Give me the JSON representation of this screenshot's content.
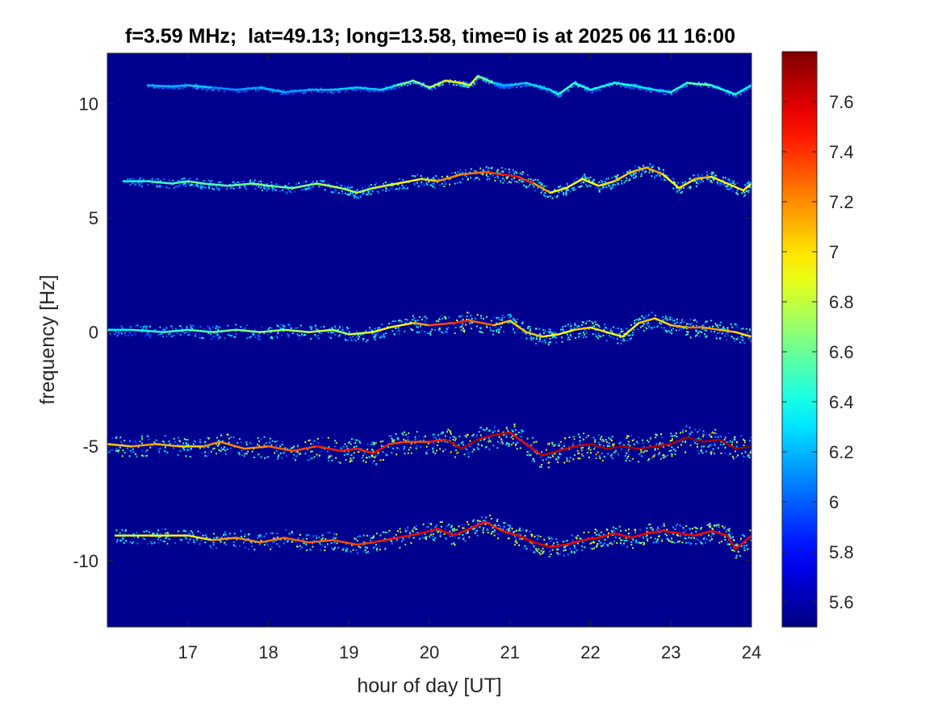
{
  "chart_data": {
    "type": "heatmap",
    "title": "f=3.59 MHz;  lat=49.13; long=13.58, time=0 is at 2025 06 11 16:00",
    "xlabel": "hour of day [UT]",
    "ylabel": "frequency [Hz]",
    "xlim": [
      16.0,
      24.0
    ],
    "ylim": [
      -12.9,
      12.2
    ],
    "xticks": [
      17,
      18,
      19,
      20,
      21,
      22,
      23,
      24
    ],
    "xtick_labels": [
      "17",
      "18",
      "19",
      "20",
      "21",
      "22",
      "23",
      "24"
    ],
    "yticks": [
      10,
      5,
      0,
      -5,
      -10
    ],
    "ytick_labels": [
      "10",
      "5",
      "0",
      "-5",
      "-10"
    ],
    "colorbar": {
      "range": [
        5.5,
        7.8
      ],
      "ticks": [
        5.6,
        5.8,
        6,
        6.2,
        6.4,
        6.6,
        6.8,
        7,
        7.2,
        7.4,
        7.6
      ],
      "tick_labels": [
        "5.6",
        "5.8",
        "6",
        "6.2",
        "6.4",
        "6.6",
        "6.8",
        "7",
        "7.2",
        "7.4",
        "7.6"
      ],
      "colormap": "jet"
    },
    "background_color": "#00008f",
    "grid": false,
    "traces": [
      {
        "hours": [
          16.5,
          16.8,
          17.0,
          17.3,
          17.6,
          17.9,
          18.2,
          18.5,
          18.8,
          19.1,
          19.4,
          19.6,
          19.8,
          20.0,
          20.2,
          20.4,
          20.5,
          20.6,
          20.8,
          20.9,
          21.0,
          21.2,
          21.5,
          21.6,
          21.8,
          22.0,
          22.3,
          22.5,
          22.8,
          23.0,
          23.2,
          23.5,
          23.8,
          24.0
        ],
        "freq": [
          10.8,
          10.75,
          10.8,
          10.7,
          10.6,
          10.7,
          10.5,
          10.6,
          10.6,
          10.7,
          10.6,
          10.8,
          11.0,
          10.7,
          11.0,
          10.9,
          10.8,
          11.2,
          10.9,
          10.8,
          10.8,
          10.9,
          10.6,
          10.4,
          10.9,
          10.6,
          10.9,
          10.8,
          10.6,
          10.5,
          10.9,
          10.8,
          10.4,
          10.8
        ],
        "intensity": [
          6.3,
          6.1,
          6.3,
          6.2,
          6.0,
          6.3,
          6.1,
          6.2,
          6.2,
          6.3,
          6.2,
          6.4,
          6.8,
          6.5,
          7.1,
          6.9,
          6.8,
          6.9,
          6.3,
          6.2,
          6.2,
          6.3,
          6.3,
          6.4,
          6.6,
          6.3,
          6.5,
          6.4,
          6.3,
          6.3,
          6.6,
          6.6,
          6.3,
          6.4
        ],
        "spread": 0.08
      },
      {
        "hours": [
          16.2,
          16.5,
          16.8,
          17.0,
          17.2,
          17.5,
          17.8,
          18.0,
          18.3,
          18.6,
          18.9,
          19.1,
          19.3,
          19.6,
          19.9,
          20.1,
          20.4,
          20.7,
          20.9,
          21.1,
          21.3,
          21.5,
          21.7,
          21.9,
          22.1,
          22.3,
          22.5,
          22.7,
          22.9,
          23.1,
          23.3,
          23.5,
          23.7,
          23.9,
          24.0
        ],
        "freq": [
          6.6,
          6.6,
          6.5,
          6.6,
          6.5,
          6.4,
          6.5,
          6.4,
          6.3,
          6.5,
          6.3,
          6.1,
          6.3,
          6.5,
          6.7,
          6.6,
          6.9,
          7.0,
          6.9,
          6.8,
          6.5,
          6.1,
          6.3,
          6.7,
          6.4,
          6.6,
          7.0,
          7.2,
          6.9,
          6.3,
          6.7,
          6.8,
          6.5,
          6.2,
          6.5
        ],
        "intensity": [
          6.3,
          6.5,
          6.5,
          6.6,
          6.6,
          6.5,
          6.7,
          6.6,
          6.6,
          6.7,
          6.8,
          6.7,
          6.8,
          6.9,
          7.0,
          7.1,
          7.3,
          7.2,
          7.5,
          7.5,
          7.3,
          7.0,
          6.9,
          7.0,
          6.9,
          7.1,
          7.0,
          7.2,
          7.1,
          6.8,
          7.2,
          7.0,
          6.9,
          7.0,
          6.9
        ],
        "spread": 0.22
      },
      {
        "hours": [
          16.0,
          16.3,
          16.7,
          17.0,
          17.3,
          17.6,
          17.9,
          18.2,
          18.5,
          18.8,
          19.0,
          19.3,
          19.5,
          19.8,
          20.0,
          20.3,
          20.5,
          20.8,
          21.0,
          21.2,
          21.4,
          21.6,
          21.8,
          22.0,
          22.2,
          22.4,
          22.6,
          22.8,
          23.0,
          23.2,
          23.4,
          23.6,
          23.8,
          24.0
        ],
        "freq": [
          0.1,
          0.1,
          0.0,
          0.1,
          0.0,
          0.1,
          0.0,
          0.1,
          0.0,
          0.1,
          -0.1,
          0.0,
          0.2,
          0.4,
          0.3,
          0.4,
          0.5,
          0.3,
          0.5,
          0.0,
          -0.2,
          -0.1,
          0.1,
          0.2,
          0.0,
          -0.2,
          0.4,
          0.6,
          0.3,
          0.2,
          0.2,
          0.1,
          0.0,
          -0.2
        ],
        "intensity": [
          6.3,
          6.4,
          6.5,
          6.5,
          6.6,
          6.6,
          6.7,
          6.7,
          6.8,
          6.8,
          6.7,
          7.0,
          6.8,
          7.1,
          7.2,
          7.5,
          7.4,
          7.2,
          7.0,
          7.1,
          7.0,
          6.9,
          7.0,
          7.1,
          6.9,
          6.9,
          7.0,
          7.1,
          6.9,
          7.3,
          7.2,
          7.1,
          7.1,
          6.9
        ],
        "spread": 0.3
      },
      {
        "hours": [
          16.0,
          16.3,
          16.6,
          16.9,
          17.2,
          17.4,
          17.7,
          18.0,
          18.3,
          18.6,
          18.9,
          19.1,
          19.3,
          19.5,
          19.7,
          20.0,
          20.2,
          20.4,
          20.6,
          20.8,
          21.0,
          21.2,
          21.4,
          21.6,
          21.8,
          22.0,
          22.2,
          22.4,
          22.6,
          22.8,
          23.0,
          23.2,
          23.4,
          23.6,
          23.8,
          24.0
        ],
        "freq": [
          -4.9,
          -5.0,
          -4.9,
          -5.0,
          -5.0,
          -4.8,
          -5.1,
          -5.0,
          -5.2,
          -5.0,
          -5.2,
          -5.1,
          -5.3,
          -4.9,
          -4.8,
          -4.8,
          -4.7,
          -5.1,
          -4.7,
          -4.5,
          -4.4,
          -4.9,
          -5.4,
          -5.2,
          -5.0,
          -4.9,
          -5.1,
          -5.0,
          -5.1,
          -5.0,
          -4.9,
          -4.6,
          -4.8,
          -4.7,
          -5.1,
          -5.0
        ],
        "intensity": [
          7.0,
          7.1,
          7.2,
          7.0,
          7.1,
          7.3,
          7.1,
          7.3,
          7.3,
          7.4,
          7.5,
          7.4,
          7.5,
          7.5,
          7.3,
          7.4,
          7.5,
          7.8,
          7.6,
          7.7,
          7.6,
          7.4,
          7.7,
          7.6,
          7.6,
          7.7,
          7.7,
          7.8,
          7.6,
          7.7,
          7.6,
          7.8,
          7.7,
          7.7,
          7.7,
          7.8
        ],
        "spread": 0.35
      },
      {
        "hours": [
          16.1,
          16.4,
          16.7,
          17.0,
          17.3,
          17.6,
          17.9,
          18.2,
          18.5,
          18.8,
          19.1,
          19.3,
          19.6,
          19.9,
          20.1,
          20.3,
          20.5,
          20.7,
          20.9,
          21.1,
          21.3,
          21.5,
          21.7,
          21.9,
          22.1,
          22.3,
          22.5,
          22.7,
          22.9,
          23.1,
          23.3,
          23.5,
          23.7,
          23.8,
          24.0
        ],
        "freq": [
          -8.9,
          -8.9,
          -8.9,
          -8.9,
          -9.1,
          -9.0,
          -9.2,
          -9.0,
          -9.2,
          -9.1,
          -9.3,
          -9.2,
          -9.0,
          -8.8,
          -8.6,
          -8.9,
          -8.6,
          -8.3,
          -8.7,
          -8.9,
          -9.2,
          -9.4,
          -9.3,
          -9.1,
          -9.0,
          -8.8,
          -9.0,
          -8.8,
          -8.7,
          -8.8,
          -8.9,
          -8.7,
          -8.9,
          -9.5,
          -8.9
        ],
        "intensity": [
          6.8,
          6.9,
          7.0,
          6.9,
          7.1,
          7.2,
          7.2,
          7.3,
          7.3,
          7.3,
          7.4,
          7.4,
          7.5,
          7.5,
          7.6,
          7.5,
          7.6,
          7.4,
          7.5,
          7.5,
          7.6,
          7.6,
          7.5,
          7.5,
          7.6,
          7.5,
          7.6,
          7.5,
          7.5,
          7.6,
          7.5,
          7.5,
          7.6,
          7.6,
          7.5
        ],
        "spread": 0.28
      }
    ]
  }
}
